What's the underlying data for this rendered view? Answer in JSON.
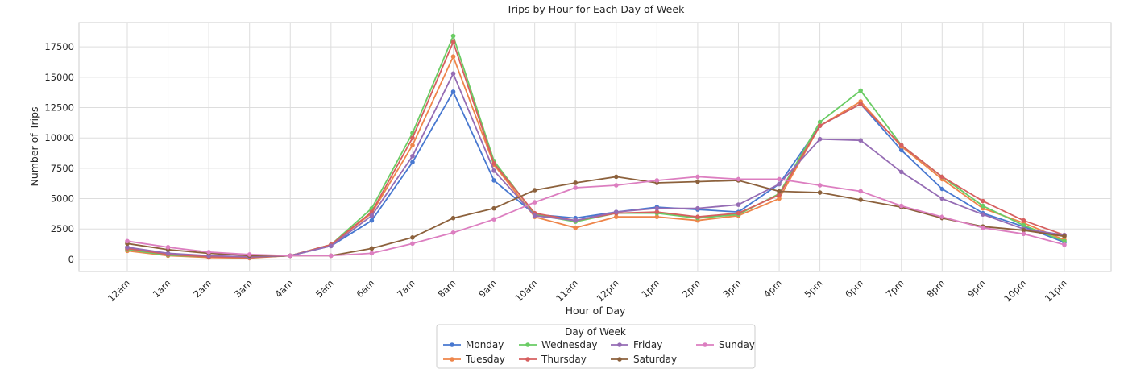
{
  "chart_data": {
    "type": "line",
    "title": "Trips by Hour for Each Day of Week",
    "xlabel": "Hour of Day",
    "ylabel": "Number of Trips",
    "categories": [
      "12am",
      "1am",
      "2am",
      "3am",
      "4am",
      "5am",
      "6am",
      "7am",
      "8am",
      "9am",
      "10am",
      "11am",
      "12pm",
      "1pm",
      "2pm",
      "3pm",
      "4pm",
      "5pm",
      "6pm",
      "7pm",
      "8pm",
      "9pm",
      "10pm",
      "11pm"
    ],
    "yticks": [
      0,
      2500,
      5000,
      7500,
      10000,
      12500,
      15000,
      17500
    ],
    "ylim": [
      -1000,
      19500
    ],
    "grid": true,
    "legend": {
      "title": "Day of Week",
      "placement": "bottom-center"
    },
    "series": [
      {
        "name": "Monday",
        "color": "#4878d0",
        "values": [
          1000,
          400,
          250,
          150,
          300,
          1100,
          3200,
          8000,
          13800,
          6500,
          3700,
          3400,
          3900,
          4300,
          4100,
          3900,
          6200,
          11000,
          12800,
          9000,
          5800,
          3800,
          2700,
          1400
        ]
      },
      {
        "name": "Tuesday",
        "color": "#ee854a",
        "values": [
          700,
          300,
          150,
          100,
          300,
          1200,
          3800,
          9400,
          16700,
          7800,
          3500,
          2600,
          3500,
          3500,
          3200,
          3600,
          5000,
          11000,
          13000,
          9300,
          6600,
          4200,
          3000,
          1600
        ]
      },
      {
        "name": "Wednesday",
        "color": "#6acc64",
        "values": [
          800,
          350,
          200,
          150,
          300,
          1200,
          4200,
          10400,
          18400,
          8100,
          3700,
          3100,
          3800,
          3800,
          3400,
          3700,
          5400,
          11300,
          13900,
          9400,
          6800,
          4400,
          2800,
          1500
        ]
      },
      {
        "name": "Thursday",
        "color": "#d65f5f",
        "values": [
          900,
          400,
          200,
          150,
          300,
          1200,
          3900,
          10000,
          17900,
          7900,
          3800,
          3200,
          3800,
          3900,
          3500,
          3800,
          5300,
          11000,
          12800,
          9400,
          6800,
          4800,
          3200,
          2000
        ]
      },
      {
        "name": "Friday",
        "color": "#956cb4",
        "values": [
          1000,
          500,
          300,
          200,
          300,
          1100,
          3600,
          8500,
          15300,
          7300,
          3600,
          3200,
          3900,
          4200,
          4200,
          4500,
          6200,
          9900,
          9800,
          7200,
          5000,
          3700,
          2500,
          2000
        ]
      },
      {
        "name": "Saturday",
        "color": "#8c613c",
        "values": [
          1300,
          800,
          500,
          300,
          300,
          300,
          900,
          1800,
          3400,
          4200,
          5700,
          6300,
          6800,
          6300,
          6400,
          6500,
          5600,
          5500,
          4900,
          4300,
          3400,
          2700,
          2400,
          1900
        ]
      },
      {
        "name": "Sunday",
        "color": "#dc7ec0",
        "values": [
          1500,
          1000,
          600,
          400,
          300,
          300,
          500,
          1300,
          2200,
          3300,
          4700,
          5900,
          6100,
          6500,
          6800,
          6600,
          6600,
          6100,
          5600,
          4400,
          3500,
          2600,
          2100,
          1200
        ]
      }
    ]
  }
}
